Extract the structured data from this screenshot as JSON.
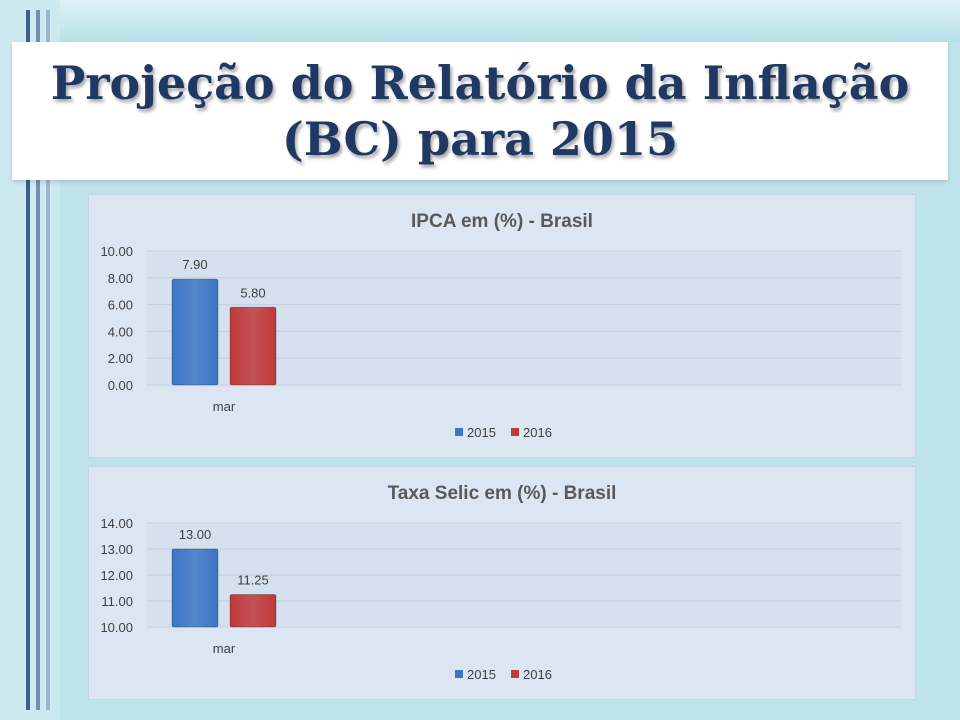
{
  "slide_title": "Projeção do Relatório da Inflação\n(BC)  para 2015",
  "colors": {
    "series_2015": "#3d76c6",
    "series_2016": "#c0393b",
    "title": "#1f3864"
  },
  "chart_data": [
    {
      "type": "bar",
      "title": "IPCA em (%) - Brasil",
      "categories": [
        "mar"
      ],
      "series": [
        {
          "name": "2015",
          "values": [
            7.9
          ]
        },
        {
          "name": "2016",
          "values": [
            5.8
          ]
        }
      ],
      "value_labels": [
        "7.90",
        "5.80"
      ],
      "ylim": [
        0,
        10
      ],
      "yticks": [
        "0.00",
        "2.00",
        "4.00",
        "6.00",
        "8.00",
        "10.00"
      ],
      "legend_position": "bottom",
      "grid": true
    },
    {
      "type": "bar",
      "title": "Taxa Selic em (%) - Brasil",
      "categories": [
        "mar"
      ],
      "series": [
        {
          "name": "2015",
          "values": [
            13.0
          ]
        },
        {
          "name": "2016",
          "values": [
            11.25
          ]
        }
      ],
      "value_labels": [
        "13.00",
        "11.25"
      ],
      "ylim": [
        10,
        14
      ],
      "yticks": [
        "10.00",
        "11.00",
        "12.00",
        "13.00",
        "14.00"
      ],
      "legend_position": "bottom",
      "grid": true
    }
  ]
}
